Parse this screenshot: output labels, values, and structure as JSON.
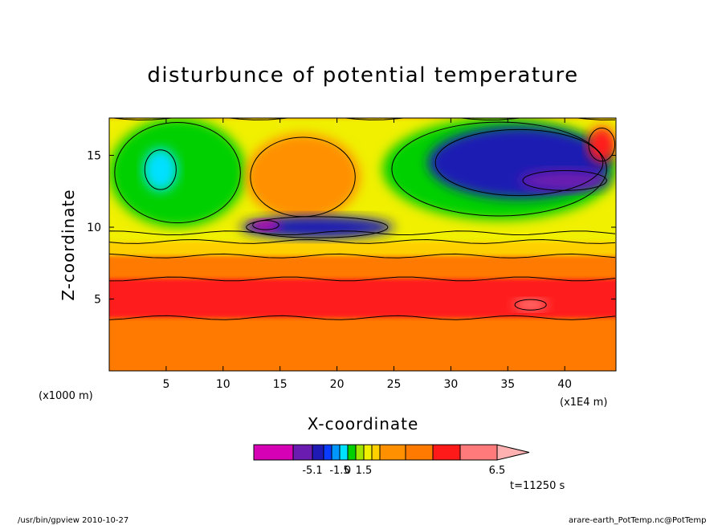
{
  "chart_data": {
    "type": "heatmap",
    "title": "disturbunce of potential temperature",
    "xlabel": "X-coordinate",
    "ylabel": "Z-coordinate",
    "x_unit_left": "(x1000 m)",
    "x_unit_right": "(x1E4 m)",
    "xlim": [
      0,
      44.5
    ],
    "ylim": [
      0,
      17.6
    ],
    "xticks": [
      {
        "value": 5,
        "label": "5"
      },
      {
        "value": 10,
        "label": "10"
      },
      {
        "value": 15,
        "label": "15"
      },
      {
        "value": 20,
        "label": "20"
      },
      {
        "value": 25,
        "label": "25"
      },
      {
        "value": 30,
        "label": "30"
      },
      {
        "value": 35,
        "label": "35"
      },
      {
        "value": 40,
        "label": "40"
      }
    ],
    "yticks": [
      {
        "value": 5,
        "label": "5"
      },
      {
        "value": 10,
        "label": "10"
      },
      {
        "value": 15,
        "label": "15"
      }
    ],
    "colorbar": {
      "colors": [
        "#d600b4",
        "#6a1bb0",
        "#1e1ab3",
        "#0a3cff",
        "#0096ff",
        "#00e0ff",
        "#00d000",
        "#a0e600",
        "#f0f000",
        "#ffd000",
        "#ff9000",
        "#ff7a00",
        "#ff1a1a",
        "#ff7a7a",
        "#ffb0b0"
      ],
      "labels": [
        {
          "after_index": 1,
          "text": "-5.1"
        },
        {
          "after_index": 4,
          "text": "-1.5"
        },
        {
          "after_index": 5,
          "text": "0"
        },
        {
          "after_index": 7,
          "text": "1.5"
        },
        {
          "after_index": 13,
          "text": "6.5"
        }
      ]
    },
    "regions": [
      {
        "color": "#ff7a00",
        "value": 2.5,
        "desc": "background lower troposphere",
        "x": [
          0,
          44.5
        ],
        "z": [
          0,
          17.6
        ]
      },
      {
        "color": "#ff1a1a",
        "value": 4.5,
        "desc": "warm layer",
        "x": [
          0,
          44.5
        ],
        "z": [
          3.7,
          6.4
        ]
      },
      {
        "color": "#ff7a7a",
        "value": 6.0,
        "desc": "warm patch",
        "x": [
          35.5,
          38.5
        ],
        "z": [
          4.2,
          5.0
        ]
      },
      {
        "color": "#ffd000",
        "value": 1.6,
        "desc": "layer",
        "x": [
          0,
          44.5
        ],
        "z": [
          8.0,
          9.6
        ]
      },
      {
        "color": "#f0f000",
        "value": 1.0,
        "desc": "upper layer",
        "x": [
          0,
          44.5
        ],
        "z": [
          9.0,
          17.6
        ]
      },
      {
        "color": "#00d000",
        "value": -0.3,
        "desc": "upper left cool",
        "x": [
          0,
          12
        ],
        "z": [
          10,
          17.6
        ]
      },
      {
        "color": "#00e0ff",
        "value": -0.6,
        "desc": "upper left cyan",
        "x": [
          3,
          6
        ],
        "z": [
          12.5,
          15.5
        ]
      },
      {
        "color": "#ff9000",
        "value": 2.0,
        "desc": "central warm dome",
        "x": [
          12,
          22
        ],
        "z": [
          10.5,
          16.5
        ]
      },
      {
        "color": "#1e1ab3",
        "value": -2.5,
        "desc": "cold anomaly",
        "x": [
          11.5,
          25
        ],
        "z": [
          9.2,
          10.8
        ]
      },
      {
        "color": "#d600b4",
        "value": -5.0,
        "desc": "cold core",
        "x": [
          12.5,
          15
        ],
        "z": [
          9.8,
          10.5
        ]
      },
      {
        "color": "#00d000",
        "value": -0.3,
        "desc": "upper right cool",
        "x": [
          24,
          44.5
        ],
        "z": [
          10.5,
          17.6
        ]
      },
      {
        "color": "#1e1ab3",
        "value": -2.5,
        "desc": "upper right cold",
        "x": [
          28,
          44
        ],
        "z": [
          12,
          17
        ]
      },
      {
        "color": "#6a1bb0",
        "value": -3.5,
        "desc": "upper right strong cold",
        "x": [
          36,
          44
        ],
        "z": [
          12.5,
          14
        ]
      },
      {
        "color": "#ff1a1a",
        "value": 5.0,
        "desc": "upper right warm",
        "x": [
          42,
          44.5
        ],
        "z": [
          14.5,
          17
        ]
      }
    ]
  },
  "time_label": "t=11250 s",
  "footer": {
    "left": "/usr/bin/gpview  2010-10-27",
    "right": "arare-earth_PotTemp.nc@PotTemp"
  }
}
